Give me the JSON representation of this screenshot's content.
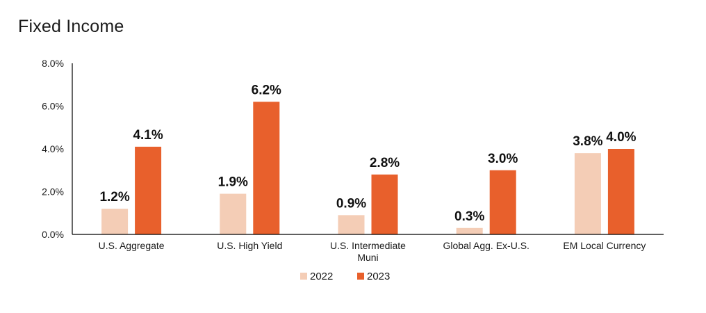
{
  "chart_data": {
    "type": "bar",
    "title": "Fixed Income",
    "categories": [
      [
        "U.S. Aggregate"
      ],
      [
        "U.S. High Yield"
      ],
      [
        "U.S. Intermediate",
        "Muni"
      ],
      [
        "Global Agg. Ex-U.S."
      ],
      [
        "EM Local Currency"
      ]
    ],
    "series": [
      {
        "name": "2022",
        "values": [
          1.2,
          1.9,
          0.9,
          0.3,
          3.8
        ],
        "labels": [
          "1.2%",
          "1.9%",
          "0.9%",
          "0.3%",
          "3.8%"
        ],
        "color": "#F4CDB6"
      },
      {
        "name": "2023",
        "values": [
          4.1,
          6.2,
          2.8,
          3.0,
          4.0
        ],
        "labels": [
          "4.1%",
          "6.2%",
          "2.8%",
          "3.0%",
          "4.0%"
        ],
        "color": "#E8602C"
      }
    ],
    "ylim": [
      0,
      8
    ],
    "yticks": [
      {
        "value": 0,
        "label": "0.0%"
      },
      {
        "value": 2,
        "label": "2.0%"
      },
      {
        "value": 4,
        "label": "4.0%"
      },
      {
        "value": 6,
        "label": "6.0%"
      },
      {
        "value": 8,
        "label": "8.0%"
      }
    ],
    "legend_position": "bottom",
    "grid": false
  }
}
